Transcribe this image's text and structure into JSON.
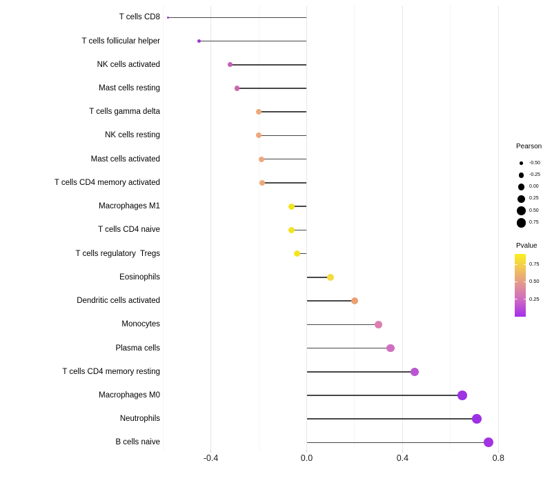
{
  "chart_data": {
    "type": "scatter",
    "subtype": "lollipop",
    "title": "",
    "xlabel": "",
    "ylabel": "",
    "grid": "vertical-light",
    "x_axis": {
      "tick_values": [
        -0.4,
        0.0,
        0.4,
        0.8
      ],
      "tick_labels": [
        "-0.4",
        "0.0",
        "0.4",
        "0.8"
      ],
      "minor_grid_values": [
        -0.6,
        -0.2,
        0.2,
        0.6
      ],
      "range": [
        -0.62,
        0.88
      ]
    },
    "rows": [
      {
        "label": "T cells CD8",
        "pearson": -0.58,
        "color": "#A137D2"
      },
      {
        "label": "T cells follicular helper",
        "pearson": -0.45,
        "color": "#A138C9"
      },
      {
        "label": "NK cells activated",
        "pearson": -0.32,
        "color": "#C75FB6"
      },
      {
        "label": "Mast cells resting",
        "pearson": -0.29,
        "color": "#CC68B0"
      },
      {
        "label": "T cells gamma delta",
        "pearson": -0.2,
        "color": "#EFA87B"
      },
      {
        "label": "NK cells resting",
        "pearson": -0.2,
        "color": "#EFA87B"
      },
      {
        "label": "Mast cells activated",
        "pearson": -0.19,
        "color": "#EFA87B"
      },
      {
        "label": "T cells CD4 memory activated",
        "pearson": -0.185,
        "color": "#EFA87B"
      },
      {
        "label": "Macrophages M1",
        "pearson": -0.063,
        "color": "#F2E41D"
      },
      {
        "label": "T cells CD4 naive",
        "pearson": -0.063,
        "color": "#F2E41D"
      },
      {
        "label": "T cells regulatory  Tregs",
        "pearson": -0.04,
        "color": "#F4E41F"
      },
      {
        "label": "Eosinophils",
        "pearson": 0.1,
        "color": "#F3DC3C"
      },
      {
        "label": "Dendritic cells activated",
        "pearson": 0.2,
        "color": "#ECA072"
      },
      {
        "label": "Monocytes",
        "pearson": 0.3,
        "color": "#DE7DAF"
      },
      {
        "label": "Plasma cells",
        "pearson": 0.35,
        "color": "#D06FC0"
      },
      {
        "label": "T cells CD4 memory resting",
        "pearson": 0.45,
        "color": "#BB55D4"
      },
      {
        "label": "Macrophages M0",
        "pearson": 0.65,
        "color": "#9D33E3"
      },
      {
        "label": "Neutrophils",
        "pearson": 0.71,
        "color": "#9D30E5"
      },
      {
        "label": "B cells naive",
        "pearson": 0.76,
        "color": "#A233E2"
      }
    ],
    "legend_pearson": {
      "title": "Pearson",
      "dot_color": "#000000",
      "entries": [
        {
          "label": "-0.50",
          "value": -0.5
        },
        {
          "label": "-0.25",
          "value": -0.25
        },
        {
          "label": "0.00",
          "value": 0.0
        },
        {
          "label": "0.25",
          "value": 0.25
        },
        {
          "label": "0.50",
          "value": 0.5
        },
        {
          "label": "0.75",
          "value": 0.75
        }
      ]
    },
    "legend_pvalue": {
      "title": "Pvalue",
      "tick_labels": [
        "0.75",
        "0.50",
        "0.25"
      ],
      "tick_values": [
        0.75,
        0.5,
        0.25
      ],
      "bar_range": [
        0.0,
        0.9
      ],
      "gradient_stops": [
        {
          "pos": 0.0,
          "color": "#A52FEA"
        },
        {
          "pos": 0.25,
          "color": "#CC67C6"
        },
        {
          "pos": 0.5,
          "color": "#E29295"
        },
        {
          "pos": 0.75,
          "color": "#F1C15C"
        },
        {
          "pos": 1.0,
          "color": "#FBF01C"
        }
      ]
    },
    "colors": {
      "stem": "#464646",
      "grid_major": "#e7e7e7",
      "grid_minor": "#f4f4f4",
      "axis_tick": "#d2d2d2",
      "text": "#000000"
    }
  }
}
